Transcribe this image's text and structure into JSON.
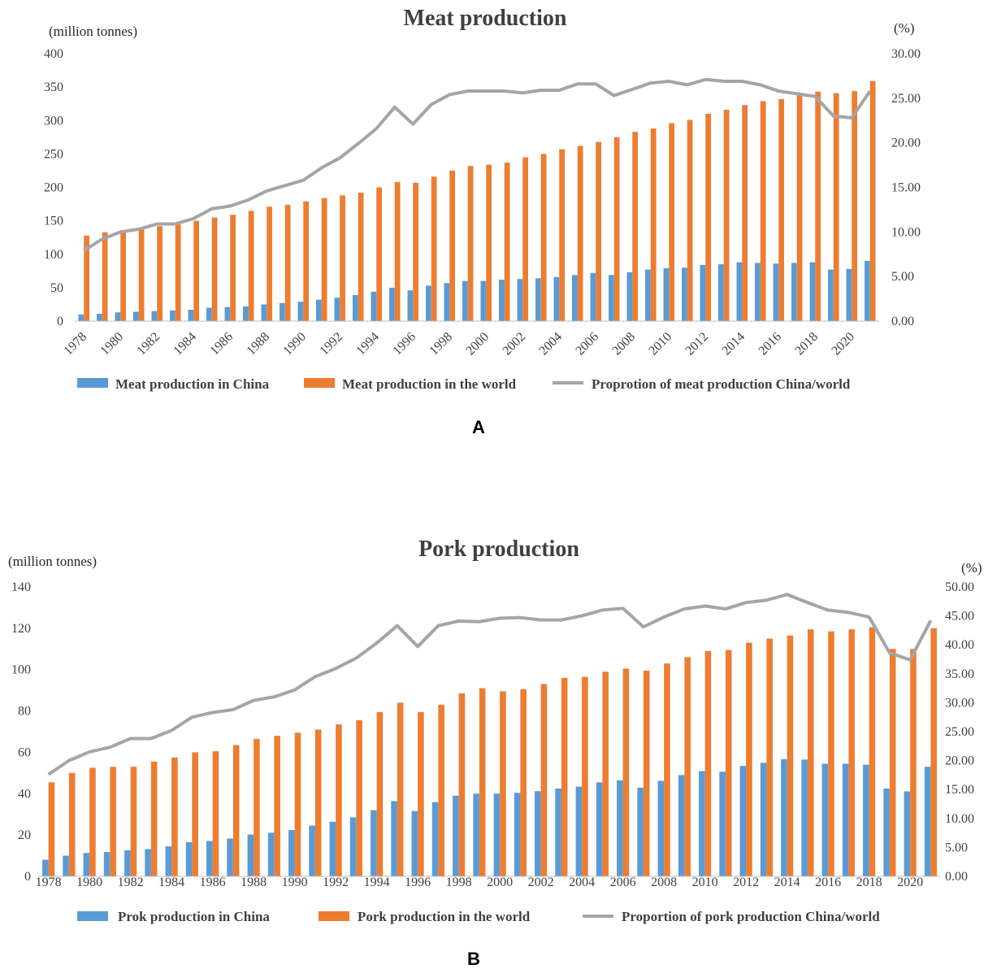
{
  "colors": {
    "china": "#5b9bd5",
    "world": "#ed7d31",
    "proportion": "#a5a5a5"
  },
  "chart_data": [
    {
      "type": "bar",
      "panel_label": "A",
      "title": "Meat production",
      "ylabel_left": "(million tonnes)",
      "ylabel_right": "(%)",
      "ylim_left": [
        0,
        400
      ],
      "ylim_right": [
        0,
        30
      ],
      "yticks_left": [
        "0",
        "50",
        "100",
        "150",
        "200",
        "250",
        "300",
        "350",
        "400"
      ],
      "yticks_right": [
        "0.00",
        "5.00",
        "10.00",
        "15.00",
        "20.00",
        "25.00",
        "30.00"
      ],
      "x": [
        1978,
        1979,
        1980,
        1981,
        1982,
        1983,
        1984,
        1985,
        1986,
        1987,
        1988,
        1989,
        1990,
        1991,
        1992,
        1993,
        1994,
        1995,
        1996,
        1997,
        1998,
        1999,
        2000,
        2001,
        2002,
        2003,
        2004,
        2005,
        2006,
        2007,
        2008,
        2009,
        2010,
        2011,
        2012,
        2013,
        2014,
        2015,
        2016,
        2017,
        2018,
        2019,
        2020,
        2021
      ],
      "x_tick_labels": [
        "1978",
        "1980",
        "1982",
        "1984",
        "1986",
        "1988",
        "1990",
        "1992",
        "1994",
        "1996",
        "1998",
        "2000",
        "2002",
        "2004",
        "2006",
        "2008",
        "2010",
        "2012",
        "2014",
        "2016",
        "2018",
        "2020"
      ],
      "grid": false,
      "legend_position": "bottom",
      "series": [
        {
          "name": "Meat production in China",
          "kind": "bar",
          "axis": "left",
          "values": [
            10,
            11,
            13,
            14,
            15,
            16,
            17,
            20,
            21,
            22,
            25,
            27,
            29,
            32,
            35,
            39,
            44,
            50,
            46,
            53,
            57,
            60,
            60,
            62,
            63,
            64,
            66,
            69,
            72,
            69,
            73,
            77,
            79,
            80,
            84,
            85,
            88,
            87,
            86,
            87,
            88,
            77,
            78,
            90
          ]
        },
        {
          "name": "Meat production in the world",
          "kind": "bar",
          "axis": "left",
          "values": [
            128,
            133,
            136,
            139,
            142,
            146,
            150,
            155,
            159,
            165,
            171,
            174,
            179,
            184,
            188,
            192,
            200,
            208,
            207,
            216,
            225,
            232,
            234,
            237,
            245,
            250,
            257,
            262,
            268,
            275,
            283,
            288,
            296,
            301,
            310,
            316,
            323,
            329,
            332,
            338,
            343,
            341,
            344,
            359
          ]
        },
        {
          "name": "Proprotion of meat production China/world",
          "kind": "line",
          "axis": "right",
          "values": [
            7.9,
            9.2,
            10.0,
            10.3,
            10.9,
            10.9,
            11.5,
            12.6,
            12.9,
            13.6,
            14.6,
            15.2,
            15.8,
            17.2,
            18.3,
            19.9,
            21.6,
            24.0,
            22.1,
            24.3,
            25.4,
            25.8,
            25.8,
            25.8,
            25.6,
            25.9,
            25.9,
            26.6,
            26.6,
            25.3,
            26.0,
            26.7,
            26.9,
            26.5,
            27.1,
            26.9,
            26.9,
            26.5,
            25.8,
            25.5,
            25.2,
            23.0,
            22.8,
            25.8
          ]
        }
      ]
    },
    {
      "type": "bar",
      "panel_label": "B",
      "title": "Pork production",
      "ylabel_left": "(million tonnes)",
      "ylabel_right": "(%)",
      "ylim_left": [
        0,
        140
      ],
      "ylim_right": [
        0,
        50
      ],
      "yticks_left": [
        "0",
        "20",
        "40",
        "60",
        "80",
        "100",
        "120",
        "140"
      ],
      "yticks_right": [
        "0.00",
        "5.00",
        "10.00",
        "15.00",
        "20.00",
        "25.00",
        "30.00",
        "35.00",
        "40.00",
        "45.00",
        "50.00"
      ],
      "x": [
        1978,
        1979,
        1980,
        1981,
        1982,
        1983,
        1984,
        1985,
        1986,
        1987,
        1988,
        1989,
        1990,
        1991,
        1992,
        1993,
        1994,
        1995,
        1996,
        1997,
        1998,
        1999,
        2000,
        2001,
        2002,
        2003,
        2004,
        2005,
        2006,
        2007,
        2008,
        2009,
        2010,
        2011,
        2012,
        2013,
        2014,
        2015,
        2016,
        2017,
        2018,
        2019,
        2020,
        2021
      ],
      "x_tick_labels": [
        "1978",
        "1980",
        "1982",
        "1984",
        "1986",
        "1988",
        "1990",
        "1992",
        "1994",
        "1996",
        "1998",
        "2000",
        "2002",
        "2004",
        "2006",
        "2008",
        "2010",
        "2012",
        "2014",
        "2016",
        "2018",
        "2020"
      ],
      "grid": false,
      "legend_position": "bottom",
      "series": [
        {
          "name": "Prok production in China",
          "kind": "bar",
          "axis": "left",
          "values": [
            8,
            10,
            11.3,
            11.8,
            12.6,
            13.2,
            14.5,
            16.5,
            17.1,
            18.3,
            20.2,
            21.1,
            22.4,
            24.5,
            26.4,
            28.5,
            32.0,
            36.4,
            31.6,
            35.9,
            39.0,
            40.0,
            40.0,
            40.4,
            41.2,
            42.5,
            43.4,
            45.5,
            46.5,
            42.9,
            46.2,
            49.0,
            50.9,
            50.6,
            53.4,
            54.9,
            56.7,
            56.5,
            54.5,
            54.5,
            54.0,
            42.5,
            41.1,
            53.0
          ]
        },
        {
          "name": "Pork production in the world",
          "kind": "bar",
          "axis": "left",
          "values": [
            45.5,
            50.0,
            52.5,
            53.0,
            53.0,
            55.5,
            57.5,
            60.0,
            60.5,
            63.5,
            66.5,
            68.0,
            69.5,
            71.0,
            73.5,
            75.5,
            79.5,
            84.0,
            79.5,
            83.0,
            88.5,
            91.0,
            89.5,
            90.5,
            93.0,
            96.0,
            96.5,
            99.0,
            100.5,
            99.5,
            103.0,
            106.0,
            109.0,
            109.5,
            113.0,
            115.0,
            116.5,
            119.5,
            118.5,
            119.5,
            120.5,
            110.0,
            110.0,
            120.0
          ]
        },
        {
          "name": "Proportion of pork production China/world",
          "kind": "line",
          "axis": "right",
          "values": [
            17.6,
            20.0,
            21.5,
            22.3,
            23.8,
            23.8,
            25.2,
            27.5,
            28.3,
            28.8,
            30.4,
            31.0,
            32.2,
            34.5,
            35.9,
            37.7,
            40.3,
            43.3,
            39.7,
            43.3,
            44.1,
            44.0,
            44.6,
            44.7,
            44.3,
            44.3,
            45.0,
            46.0,
            46.3,
            43.1,
            44.8,
            46.2,
            46.7,
            46.2,
            47.3,
            47.7,
            48.7,
            47.3,
            46.0,
            45.6,
            44.8,
            38.6,
            37.4,
            44.2
          ]
        }
      ]
    }
  ]
}
